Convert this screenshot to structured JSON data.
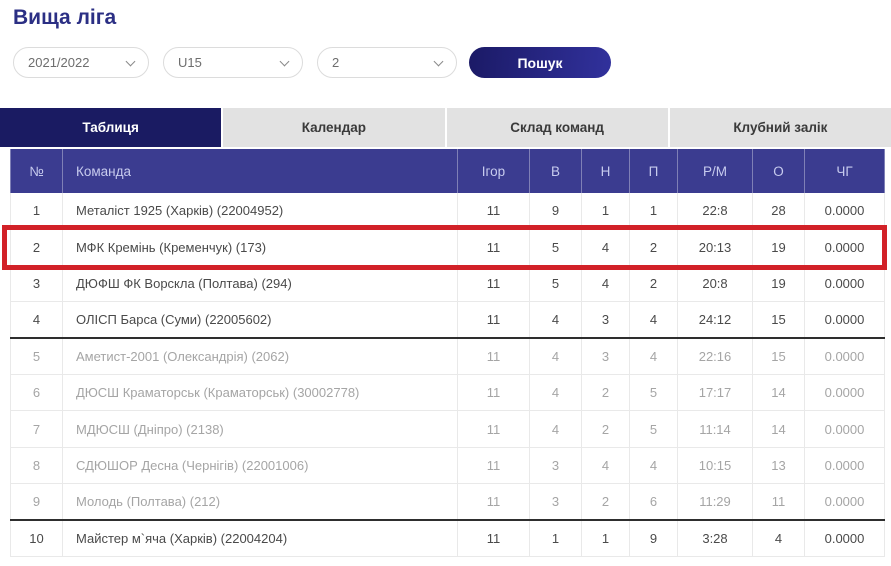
{
  "page": {
    "title": "Вища ліга"
  },
  "filters": {
    "season": {
      "value": "2021/2022"
    },
    "age_group": {
      "value": "U15"
    },
    "round": {
      "value": "2"
    },
    "search_label": "Пошук"
  },
  "tabs": [
    {
      "label": "Таблиця",
      "active": true
    },
    {
      "label": "Календар",
      "active": false
    },
    {
      "label": "Склад команд",
      "active": false
    },
    {
      "label": "Клубний залік",
      "active": false
    }
  ],
  "table": {
    "columns": [
      "№",
      "Команда",
      "Ігор",
      "В",
      "Н",
      "П",
      "Р/М",
      "О",
      "ЧГ"
    ],
    "rows": [
      {
        "pos": "1",
        "team": "Металіст 1925 (Харків) (22004952)",
        "games": "11",
        "w": "9",
        "d": "1",
        "l": "1",
        "goals": "22:8",
        "points": "28",
        "chg": "0.0000",
        "muted": false,
        "highlighted": false,
        "separator_after": false
      },
      {
        "pos": "2",
        "team": "МФК Кремінь (Кременчук) (173)",
        "games": "11",
        "w": "5",
        "d": "4",
        "l": "2",
        "goals": "20:13",
        "points": "19",
        "chg": "0.0000",
        "muted": false,
        "highlighted": true,
        "separator_after": false
      },
      {
        "pos": "3",
        "team": "ДЮФШ ФК Ворскла (Полтава) (294)",
        "games": "11",
        "w": "5",
        "d": "4",
        "l": "2",
        "goals": "20:8",
        "points": "19",
        "chg": "0.0000",
        "muted": false,
        "highlighted": false,
        "separator_after": false
      },
      {
        "pos": "4",
        "team": "ОЛІСП Барса (Суми) (22005602)",
        "games": "11",
        "w": "4",
        "d": "3",
        "l": "4",
        "goals": "24:12",
        "points": "15",
        "chg": "0.0000",
        "muted": false,
        "highlighted": false,
        "separator_after": true
      },
      {
        "pos": "5",
        "team": "Аметист-2001 (Олександрія) (2062)",
        "games": "11",
        "w": "4",
        "d": "3",
        "l": "4",
        "goals": "22:16",
        "points": "15",
        "chg": "0.0000",
        "muted": true,
        "highlighted": false,
        "separator_after": false
      },
      {
        "pos": "6",
        "team": "ДЮСШ Краматорськ (Краматорськ) (30002778)",
        "games": "11",
        "w": "4",
        "d": "2",
        "l": "5",
        "goals": "17:17",
        "points": "14",
        "chg": "0.0000",
        "muted": true,
        "highlighted": false,
        "separator_after": false
      },
      {
        "pos": "7",
        "team": "МДЮСШ (Дніпро) (2138)",
        "games": "11",
        "w": "4",
        "d": "2",
        "l": "5",
        "goals": "11:14",
        "points": "14",
        "chg": "0.0000",
        "muted": true,
        "highlighted": false,
        "separator_after": false
      },
      {
        "pos": "8",
        "team": "СДЮШОР Десна (Чернігів) (22001006)",
        "games": "11",
        "w": "3",
        "d": "4",
        "l": "4",
        "goals": "10:15",
        "points": "13",
        "chg": "0.0000",
        "muted": true,
        "highlighted": false,
        "separator_after": false
      },
      {
        "pos": "9",
        "team": "Молодь (Полтава) (212)",
        "games": "11",
        "w": "3",
        "d": "2",
        "l": "6",
        "goals": "11:29",
        "points": "11",
        "chg": "0.0000",
        "muted": true,
        "highlighted": false,
        "separator_after": true
      },
      {
        "pos": "10",
        "team": "Майстер м`яча (Харків) (22004204)",
        "games": "11",
        "w": "1",
        "d": "1",
        "l": "9",
        "goals": "3:28",
        "points": "4",
        "chg": "0.0000",
        "muted": false,
        "highlighted": false,
        "separator_after": false
      }
    ]
  },
  "colors": {
    "title_blue": "#2b2f84",
    "active_tab_navy": "#1a1b62",
    "table_header_indigo": "#3b3c90",
    "highlight_red": "#d22128",
    "button_gradient_start": "#1b1a66",
    "button_gradient_end": "#31319c"
  }
}
